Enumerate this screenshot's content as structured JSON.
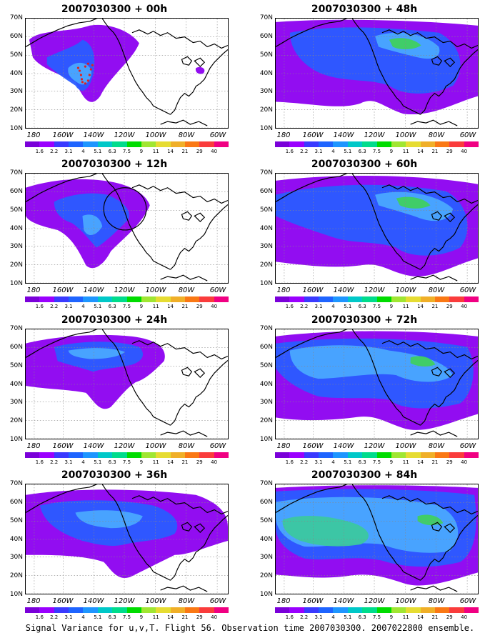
{
  "panels": [
    {
      "title": "2007030300 + 00h"
    },
    {
      "title": "2007030300 + 48h"
    },
    {
      "title": "2007030300 + 12h"
    },
    {
      "title": "2007030300 + 60h"
    },
    {
      "title": "2007030300 + 24h"
    },
    {
      "title": "2007030300 + 72h"
    },
    {
      "title": "2007030300 + 36h"
    },
    {
      "title": "2007030300 + 84h"
    }
  ],
  "axes": {
    "lat_labels": [
      "70N",
      "60N",
      "50N",
      "40N",
      "30N",
      "20N",
      "10N"
    ],
    "lon_labels": [
      "180",
      "160W",
      "140W",
      "120W",
      "100W",
      "80W",
      "60W"
    ]
  },
  "colorbar": {
    "labels": [
      "1.6",
      "2.2",
      "3.1",
      "4",
      "5.1",
      "6.3",
      "7.5",
      "9",
      "11",
      "14",
      "21",
      "29",
      "40"
    ],
    "colors": [
      "#7a00d9",
      "#9a00ff",
      "#3a3aff",
      "#1e64ff",
      "#1e96ff",
      "#00c8c8",
      "#00dc8c",
      "#00dc00",
      "#a0e632",
      "#e6dc32",
      "#f0af28",
      "#fa7814",
      "#fa3c3c",
      "#f00082"
    ]
  },
  "footer": "Signal Variance for u,v,T. Flight 56. Observation time 2007030300. 2007022800 ensemble.",
  "colors": {
    "purple": "#8c00f0",
    "blue": "#2a5cff",
    "lightblue": "#4aa8ff",
    "teal": "#3cc8a0",
    "green": "#40d060",
    "obs_marker": "#e02020"
  }
}
